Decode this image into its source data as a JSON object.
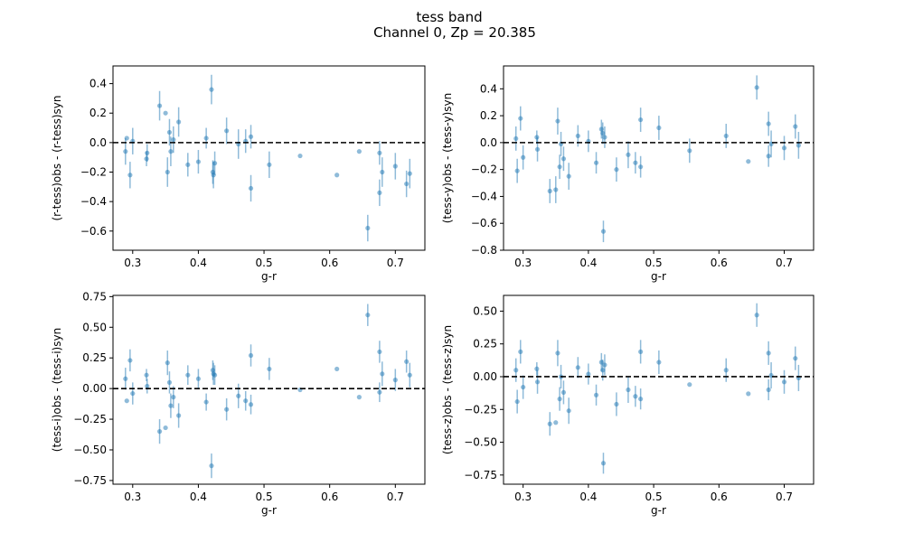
{
  "figure": {
    "title_line1": "tess band",
    "title_line2": "Channel 0, Zp = 20.385"
  },
  "style": {
    "point_color": "#1f77b4",
    "zero_line_color": "#000000"
  },
  "chart_data": [
    {
      "type": "scatter",
      "xlabel": "g-r",
      "ylabel": "(r-tess)obs - (r-tess)syn",
      "xlim": [
        0.27,
        0.745
      ],
      "ylim": [
        -0.73,
        0.52
      ],
      "xticks": [
        "0.3",
        "0.4",
        "0.5",
        "0.6",
        "0.7"
      ],
      "xtick_values": [
        0.3,
        0.4,
        0.5,
        0.6,
        0.7
      ],
      "yticks": [
        "−0.6",
        "−0.4",
        "−0.2",
        "0.0",
        "0.2",
        "0.4"
      ],
      "ytick_values": [
        -0.6,
        -0.4,
        -0.2,
        0.0,
        0.2,
        0.4
      ],
      "reference_line": 0,
      "points": [
        {
          "x": 0.289,
          "y": -0.06,
          "err": 0.09
        },
        {
          "x": 0.291,
          "y": 0.03,
          "err": 0.0
        },
        {
          "x": 0.296,
          "y": -0.22,
          "err": 0.09
        },
        {
          "x": 0.3,
          "y": 0.01,
          "err": 0.09
        },
        {
          "x": 0.321,
          "y": -0.11,
          "err": 0.05
        },
        {
          "x": 0.322,
          "y": -0.07,
          "err": 0.06
        },
        {
          "x": 0.341,
          "y": 0.25,
          "err": 0.1
        },
        {
          "x": 0.35,
          "y": 0.2,
          "err": 0.0
        },
        {
          "x": 0.353,
          "y": -0.2,
          "err": 0.1
        },
        {
          "x": 0.356,
          "y": 0.07,
          "err": 0.09
        },
        {
          "x": 0.358,
          "y": -0.06,
          "err": 0.1
        },
        {
          "x": 0.362,
          "y": 0.02,
          "err": 0.09
        },
        {
          "x": 0.37,
          "y": 0.14,
          "err": 0.1
        },
        {
          "x": 0.384,
          "y": -0.15,
          "err": 0.08
        },
        {
          "x": 0.4,
          "y": -0.13,
          "err": 0.08
        },
        {
          "x": 0.412,
          "y": 0.03,
          "err": 0.07
        },
        {
          "x": 0.42,
          "y": 0.36,
          "err": 0.1
        },
        {
          "x": 0.422,
          "y": -0.2,
          "err": 0.08
        },
        {
          "x": 0.423,
          "y": -0.22,
          "err": 0.09
        },
        {
          "x": 0.425,
          "y": -0.14,
          "err": 0.08
        },
        {
          "x": 0.443,
          "y": 0.08,
          "err": 0.09
        },
        {
          "x": 0.461,
          "y": -0.01,
          "err": 0.1
        },
        {
          "x": 0.472,
          "y": 0.01,
          "err": 0.08
        },
        {
          "x": 0.48,
          "y": -0.31,
          "err": 0.09
        },
        {
          "x": 0.48,
          "y": 0.04,
          "err": 0.08
        },
        {
          "x": 0.508,
          "y": -0.15,
          "err": 0.09
        },
        {
          "x": 0.555,
          "y": -0.09,
          "err": 0.0
        },
        {
          "x": 0.611,
          "y": -0.22,
          "err": 0.0
        },
        {
          "x": 0.645,
          "y": -0.06,
          "err": 0.0
        },
        {
          "x": 0.658,
          "y": -0.58,
          "err": 0.09
        },
        {
          "x": 0.676,
          "y": -0.34,
          "err": 0.09
        },
        {
          "x": 0.676,
          "y": -0.07,
          "err": 0.08
        },
        {
          "x": 0.68,
          "y": -0.2,
          "err": 0.1
        },
        {
          "x": 0.7,
          "y": -0.16,
          "err": 0.09
        },
        {
          "x": 0.717,
          "y": -0.28,
          "err": 0.09
        },
        {
          "x": 0.722,
          "y": -0.21,
          "err": 0.1
        }
      ]
    },
    {
      "type": "scatter",
      "xlabel": "g-r",
      "ylabel": "(tess-y)obs - (tess-y)syn",
      "xlim": [
        0.27,
        0.745
      ],
      "ylim": [
        -0.8,
        0.57
      ],
      "xticks": [
        "0.3",
        "0.4",
        "0.5",
        "0.6",
        "0.7"
      ],
      "xtick_values": [
        0.3,
        0.4,
        0.5,
        0.6,
        0.7
      ],
      "yticks": [
        "−0.8",
        "−0.6",
        "−0.4",
        "−0.2",
        "0.0",
        "0.2",
        "0.4"
      ],
      "ytick_values": [
        -0.8,
        -0.6,
        -0.4,
        -0.2,
        0.0,
        0.2,
        0.4
      ],
      "reference_line": 0,
      "points": [
        {
          "x": 0.289,
          "y": 0.03,
          "err": 0.09
        },
        {
          "x": 0.291,
          "y": -0.21,
          "err": 0.09
        },
        {
          "x": 0.296,
          "y": 0.18,
          "err": 0.09
        },
        {
          "x": 0.3,
          "y": -0.11,
          "err": 0.09
        },
        {
          "x": 0.321,
          "y": 0.04,
          "err": 0.05
        },
        {
          "x": 0.322,
          "y": -0.05,
          "err": 0.09
        },
        {
          "x": 0.341,
          "y": -0.36,
          "err": 0.09
        },
        {
          "x": 0.35,
          "y": -0.35,
          "err": 0.1
        },
        {
          "x": 0.353,
          "y": 0.16,
          "err": 0.1
        },
        {
          "x": 0.356,
          "y": -0.18,
          "err": 0.09
        },
        {
          "x": 0.358,
          "y": -0.01,
          "err": 0.09
        },
        {
          "x": 0.362,
          "y": -0.12,
          "err": 0.09
        },
        {
          "x": 0.37,
          "y": -0.25,
          "err": 0.1
        },
        {
          "x": 0.384,
          "y": 0.05,
          "err": 0.08
        },
        {
          "x": 0.4,
          "y": 0.01,
          "err": 0.08
        },
        {
          "x": 0.412,
          "y": -0.15,
          "err": 0.08
        },
        {
          "x": 0.42,
          "y": 0.1,
          "err": 0.07
        },
        {
          "x": 0.422,
          "y": 0.07,
          "err": 0.08
        },
        {
          "x": 0.423,
          "y": -0.66,
          "err": 0.08
        },
        {
          "x": 0.425,
          "y": 0.04,
          "err": 0.08
        },
        {
          "x": 0.443,
          "y": -0.2,
          "err": 0.09
        },
        {
          "x": 0.461,
          "y": -0.09,
          "err": 0.1
        },
        {
          "x": 0.472,
          "y": -0.15,
          "err": 0.08
        },
        {
          "x": 0.48,
          "y": 0.17,
          "err": 0.09
        },
        {
          "x": 0.48,
          "y": -0.18,
          "err": 0.08
        },
        {
          "x": 0.508,
          "y": 0.11,
          "err": 0.09
        },
        {
          "x": 0.555,
          "y": -0.06,
          "err": 0.09
        },
        {
          "x": 0.611,
          "y": 0.05,
          "err": 0.09
        },
        {
          "x": 0.645,
          "y": -0.14,
          "err": 0.0
        },
        {
          "x": 0.658,
          "y": 0.41,
          "err": 0.09
        },
        {
          "x": 0.676,
          "y": 0.14,
          "err": 0.09
        },
        {
          "x": 0.676,
          "y": -0.1,
          "err": 0.08
        },
        {
          "x": 0.68,
          "y": -0.01,
          "err": 0.1
        },
        {
          "x": 0.7,
          "y": -0.04,
          "err": 0.09
        },
        {
          "x": 0.717,
          "y": 0.12,
          "err": 0.09
        },
        {
          "x": 0.722,
          "y": -0.02,
          "err": 0.1
        }
      ]
    },
    {
      "type": "scatter",
      "xlabel": "g-r",
      "ylabel": "(tess-i)obs - (tess-i)syn",
      "xlim": [
        0.27,
        0.745
      ],
      "ylim": [
        -0.78,
        0.76
      ],
      "xticks": [
        "0.3",
        "0.4",
        "0.5",
        "0.6",
        "0.7"
      ],
      "xtick_values": [
        0.3,
        0.4,
        0.5,
        0.6,
        0.7
      ],
      "yticks": [
        "−0.75",
        "−0.50",
        "−0.25",
        "0.00",
        "0.25",
        "0.50",
        "0.75"
      ],
      "ytick_values": [
        -0.75,
        -0.5,
        -0.25,
        0.0,
        0.25,
        0.5,
        0.75
      ],
      "reference_line": 0,
      "points": [
        {
          "x": 0.289,
          "y": 0.08,
          "err": 0.09
        },
        {
          "x": 0.291,
          "y": -0.1,
          "err": 0.0
        },
        {
          "x": 0.296,
          "y": 0.23,
          "err": 0.09
        },
        {
          "x": 0.3,
          "y": -0.04,
          "err": 0.09
        },
        {
          "x": 0.321,
          "y": 0.11,
          "err": 0.05
        },
        {
          "x": 0.322,
          "y": 0.02,
          "err": 0.06
        },
        {
          "x": 0.341,
          "y": -0.35,
          "err": 0.1
        },
        {
          "x": 0.35,
          "y": -0.32,
          "err": 0.0
        },
        {
          "x": 0.353,
          "y": 0.21,
          "err": 0.1
        },
        {
          "x": 0.356,
          "y": 0.05,
          "err": 0.09
        },
        {
          "x": 0.358,
          "y": -0.14,
          "err": 0.1
        },
        {
          "x": 0.362,
          "y": -0.07,
          "err": 0.09
        },
        {
          "x": 0.37,
          "y": -0.22,
          "err": 0.1
        },
        {
          "x": 0.384,
          "y": 0.11,
          "err": 0.08
        },
        {
          "x": 0.4,
          "y": 0.08,
          "err": 0.08
        },
        {
          "x": 0.412,
          "y": -0.11,
          "err": 0.07
        },
        {
          "x": 0.42,
          "y": -0.63,
          "err": 0.1
        },
        {
          "x": 0.422,
          "y": 0.15,
          "err": 0.08
        },
        {
          "x": 0.423,
          "y": 0.12,
          "err": 0.09
        },
        {
          "x": 0.425,
          "y": 0.11,
          "err": 0.08
        },
        {
          "x": 0.443,
          "y": -0.17,
          "err": 0.09
        },
        {
          "x": 0.461,
          "y": -0.06,
          "err": 0.1
        },
        {
          "x": 0.472,
          "y": -0.1,
          "err": 0.08
        },
        {
          "x": 0.48,
          "y": 0.27,
          "err": 0.09
        },
        {
          "x": 0.48,
          "y": -0.13,
          "err": 0.08
        },
        {
          "x": 0.508,
          "y": 0.16,
          "err": 0.09
        },
        {
          "x": 0.555,
          "y": -0.01,
          "err": 0.0
        },
        {
          "x": 0.611,
          "y": 0.16,
          "err": 0.0
        },
        {
          "x": 0.645,
          "y": -0.07,
          "err": 0.0
        },
        {
          "x": 0.658,
          "y": 0.6,
          "err": 0.09
        },
        {
          "x": 0.676,
          "y": 0.3,
          "err": 0.09
        },
        {
          "x": 0.676,
          "y": -0.03,
          "err": 0.08
        },
        {
          "x": 0.68,
          "y": 0.12,
          "err": 0.1
        },
        {
          "x": 0.7,
          "y": 0.07,
          "err": 0.09
        },
        {
          "x": 0.717,
          "y": 0.22,
          "err": 0.09
        },
        {
          "x": 0.722,
          "y": 0.11,
          "err": 0.1
        }
      ]
    },
    {
      "type": "scatter",
      "xlabel": "g-r",
      "ylabel": "(tess-z)obs - (tess-z)syn",
      "xlim": [
        0.27,
        0.745
      ],
      "ylim": [
        -0.82,
        0.62
      ],
      "xticks": [
        "0.3",
        "0.4",
        "0.5",
        "0.6",
        "0.7"
      ],
      "xtick_values": [
        0.3,
        0.4,
        0.5,
        0.6,
        0.7
      ],
      "yticks": [
        "−0.75",
        "−0.50",
        "−0.25",
        "0.00",
        "0.25",
        "0.50"
      ],
      "ytick_values": [
        -0.75,
        -0.5,
        -0.25,
        0.0,
        0.25,
        0.5
      ],
      "reference_line": 0,
      "points": [
        {
          "x": 0.289,
          "y": 0.05,
          "err": 0.09
        },
        {
          "x": 0.291,
          "y": -0.19,
          "err": 0.09
        },
        {
          "x": 0.296,
          "y": 0.19,
          "err": 0.09
        },
        {
          "x": 0.3,
          "y": -0.08,
          "err": 0.09
        },
        {
          "x": 0.321,
          "y": 0.06,
          "err": 0.05
        },
        {
          "x": 0.322,
          "y": -0.04,
          "err": 0.09
        },
        {
          "x": 0.341,
          "y": -0.36,
          "err": 0.09
        },
        {
          "x": 0.35,
          "y": -0.35,
          "err": 0.0
        },
        {
          "x": 0.353,
          "y": 0.18,
          "err": 0.1
        },
        {
          "x": 0.356,
          "y": -0.17,
          "err": 0.09
        },
        {
          "x": 0.358,
          "y": 0.0,
          "err": 0.09
        },
        {
          "x": 0.362,
          "y": -0.12,
          "err": 0.09
        },
        {
          "x": 0.37,
          "y": -0.26,
          "err": 0.1
        },
        {
          "x": 0.384,
          "y": 0.07,
          "err": 0.08
        },
        {
          "x": 0.4,
          "y": 0.02,
          "err": 0.08
        },
        {
          "x": 0.412,
          "y": -0.14,
          "err": 0.08
        },
        {
          "x": 0.42,
          "y": 0.11,
          "err": 0.07
        },
        {
          "x": 0.422,
          "y": 0.05,
          "err": 0.08
        },
        {
          "x": 0.423,
          "y": -0.66,
          "err": 0.08
        },
        {
          "x": 0.425,
          "y": 0.09,
          "err": 0.08
        },
        {
          "x": 0.443,
          "y": -0.21,
          "err": 0.09
        },
        {
          "x": 0.461,
          "y": -0.1,
          "err": 0.1
        },
        {
          "x": 0.472,
          "y": -0.15,
          "err": 0.08
        },
        {
          "x": 0.48,
          "y": 0.19,
          "err": 0.09
        },
        {
          "x": 0.48,
          "y": -0.17,
          "err": 0.08
        },
        {
          "x": 0.508,
          "y": 0.11,
          "err": 0.09
        },
        {
          "x": 0.555,
          "y": -0.06,
          "err": 0.0
        },
        {
          "x": 0.611,
          "y": 0.05,
          "err": 0.09
        },
        {
          "x": 0.645,
          "y": -0.13,
          "err": 0.0
        },
        {
          "x": 0.658,
          "y": 0.47,
          "err": 0.09
        },
        {
          "x": 0.676,
          "y": 0.18,
          "err": 0.09
        },
        {
          "x": 0.676,
          "y": -0.1,
          "err": 0.08
        },
        {
          "x": 0.68,
          "y": 0.01,
          "err": 0.1
        },
        {
          "x": 0.7,
          "y": -0.04,
          "err": 0.09
        },
        {
          "x": 0.717,
          "y": 0.14,
          "err": 0.09
        },
        {
          "x": 0.722,
          "y": -0.01,
          "err": 0.1
        }
      ]
    }
  ]
}
